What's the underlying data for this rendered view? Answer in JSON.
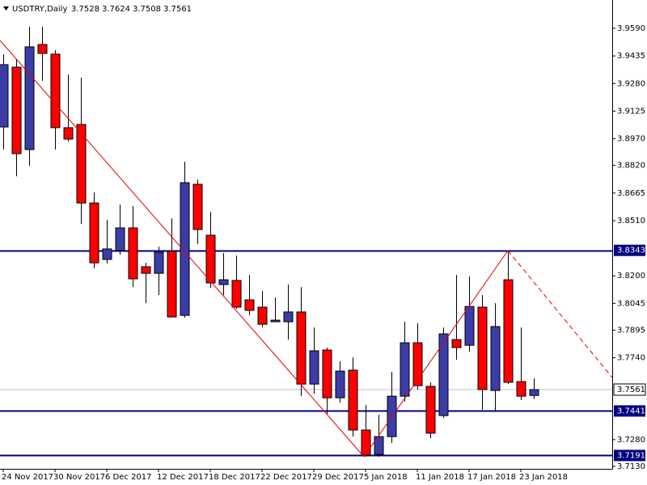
{
  "chart_data": {
    "type": "candlestick",
    "title": "USDTRY,Daily",
    "categories": [
      "24 Nov 2017",
      null,
      null,
      null,
      "30 Nov 2017",
      null,
      null,
      null,
      "6 Dec 2017",
      null,
      null,
      null,
      "12 Dec 2017",
      null,
      null,
      null,
      "18 Dec 2017",
      null,
      null,
      null,
      "22 Dec 2017",
      null,
      null,
      null,
      "29 Dec 2017",
      null,
      null,
      null,
      "5 Jan 2018",
      null,
      null,
      null,
      "11 Jan 2018",
      null,
      null,
      null,
      "17 Jan 2018",
      null,
      null,
      null,
      "23 Jan 2018",
      null
    ],
    "open": [
      3.9036,
      3.9372,
      3.8909,
      3.9499,
      3.9445,
      3.9032,
      3.905,
      3.8609,
      3.8292,
      3.8342,
      3.8469,
      3.8251,
      3.8214,
      3.8337,
      3.7978,
      3.8714,
      3.8428,
      3.8151,
      3.8174,
      3.8065,
      3.8024,
      3.7942,
      3.7942,
      3.7997,
      3.7592,
      3.7783,
      3.7515,
      3.767,
      3.7334,
      3.7197,
      3.7297,
      3.7524,
      3.7824,
      3.7579,
      3.7415,
      3.7842,
      3.781,
      3.8024,
      3.7556,
      3.8178,
      3.7606,
      3.7528
    ],
    "high": [
      3.9445,
      3.9417,
      3.9599,
      3.9599,
      3.9467,
      3.9331,
      3.9313,
      3.8668,
      3.8514,
      3.86,
      3.8591,
      3.8273,
      3.8364,
      3.8523,
      3.8841,
      3.8741,
      3.8559,
      3.8328,
      3.8314,
      3.8205,
      3.8115,
      3.8078,
      3.8151,
      3.8137,
      3.791,
      3.7797,
      3.772,
      3.7742,
      3.7474,
      3.742,
      3.7661,
      3.7942,
      3.7933,
      3.7602,
      3.791,
      3.8205,
      3.8196,
      3.8092,
      3.8046,
      3.8342,
      3.791,
      3.7624
    ],
    "low": [
      3.8909,
      3.8759,
      3.8818,
      3.9295,
      3.8909,
      3.8954,
      3.8491,
      3.8242,
      3.8269,
      3.8319,
      3.8137,
      3.8046,
      3.8092,
      3.7969,
      3.7965,
      3.8378,
      3.8133,
      3.8092,
      3.8015,
      3.7978,
      3.791,
      3.7942,
      3.7842,
      3.7524,
      3.7538,
      3.7424,
      3.7488,
      3.7297,
      3.7184,
      3.7184,
      3.7261,
      3.7493,
      3.7561,
      3.7288,
      3.7402,
      3.7729,
      3.7774,
      3.7447,
      3.7443,
      3.7592,
      3.7502,
      3.7508
    ],
    "close": [
      3.9386,
      3.8886,
      3.9486,
      3.9449,
      3.9032,
      3.8968,
      3.8609,
      3.8273,
      3.8351,
      3.8469,
      3.8183,
      3.8214,
      3.8332,
      3.7969,
      3.8723,
      3.846,
      3.816,
      3.8178,
      3.8024,
      3.8006,
      3.7928,
      3.7951,
      3.7997,
      3.7592,
      3.7779,
      3.7515,
      3.7665,
      3.7334,
      3.7193,
      3.7297,
      3.7524,
      3.7824,
      3.7583,
      3.7316,
      3.7874,
      3.7797,
      3.8028,
      3.7561,
      3.7915,
      3.7602,
      3.7524,
      3.7561
    ],
    "up_color": "#3c3ca8",
    "down_color": "#ff0000",
    "level_color": "#000080",
    "levels": [
      3.8343,
      3.7441,
      3.7191
    ],
    "ylim": [
      3.7116,
      3.9749
    ],
    "yticks": [
      {
        "value": 3.959,
        "label": "3.9590"
      },
      3.9435,
      {
        "value": 3.928,
        "label": "3.9280"
      },
      3.9125,
      {
        "value": 3.897,
        "label": "3.8970"
      },
      {
        "value": 3.882,
        "label": "3.8820"
      },
      3.8665,
      {
        "value": 3.851,
        "label": "3.8510"
      },
      {
        "value": 3.82,
        "label": "3.8200"
      },
      3.8045,
      3.7895,
      {
        "value": 3.774,
        "label": "3.7740"
      },
      {
        "value": 3.728,
        "label": "3.7280"
      },
      {
        "value": 3.713,
        "label": "3.7130"
      }
    ]
  }
}
